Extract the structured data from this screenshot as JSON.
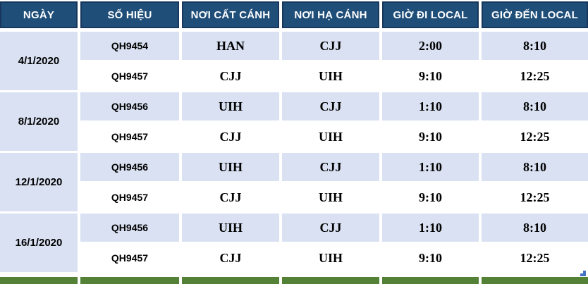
{
  "table": {
    "columns": [
      {
        "label": "NGÀY"
      },
      {
        "label": "SỐ HIỆU"
      },
      {
        "label": "NƠI CẤT CÁNH"
      },
      {
        "label": "NƠI HẠ CÁNH"
      },
      {
        "label": "GIỜ ĐI LOCAL"
      },
      {
        "label": "GIỜ ĐẾN LOCAL"
      }
    ],
    "groups": [
      {
        "date": "4/1/2020",
        "flights": [
          {
            "flight": "QH9454",
            "depart": "HAN",
            "arrive": "CJJ",
            "dep_time": "2:00",
            "arr_time": "8:10"
          },
          {
            "flight": "QH9457",
            "depart": "CJJ",
            "arrive": "UIH",
            "dep_time": "9:10",
            "arr_time": "12:25"
          }
        ]
      },
      {
        "date": "8/1/2020",
        "flights": [
          {
            "flight": "QH9456",
            "depart": "UIH",
            "arrive": "CJJ",
            "dep_time": "1:10",
            "arr_time": "8:10"
          },
          {
            "flight": "QH9457",
            "depart": "CJJ",
            "arrive": "UIH",
            "dep_time": "9:10",
            "arr_time": "12:25"
          }
        ]
      },
      {
        "date": "12/1/2020",
        "flights": [
          {
            "flight": "QH9456",
            "depart": "UIH",
            "arrive": "CJJ",
            "dep_time": "1:10",
            "arr_time": "8:10"
          },
          {
            "flight": "QH9457",
            "depart": "CJJ",
            "arrive": "UIH",
            "dep_time": "9:10",
            "arr_time": "12:25"
          }
        ]
      },
      {
        "date": "16/1/2020",
        "flights": [
          {
            "flight": "QH9456",
            "depart": "UIH",
            "arrive": "CJJ",
            "dep_time": "1:10",
            "arr_time": "8:10"
          },
          {
            "flight": "QH9457",
            "depart": "CJJ",
            "arrive": "UIH",
            "dep_time": "9:10",
            "arr_time": "12:25"
          }
        ]
      }
    ]
  },
  "colors": {
    "header_bg": "#1F4E79",
    "header_border": "#17375D",
    "header_text": "#FFFFFF",
    "row_alt_bg": "#D9E1F2",
    "row_bg": "#FFFFFF",
    "footer_bar": "#538135",
    "corner_mark": "#4472C4",
    "body_text": "#000000"
  }
}
